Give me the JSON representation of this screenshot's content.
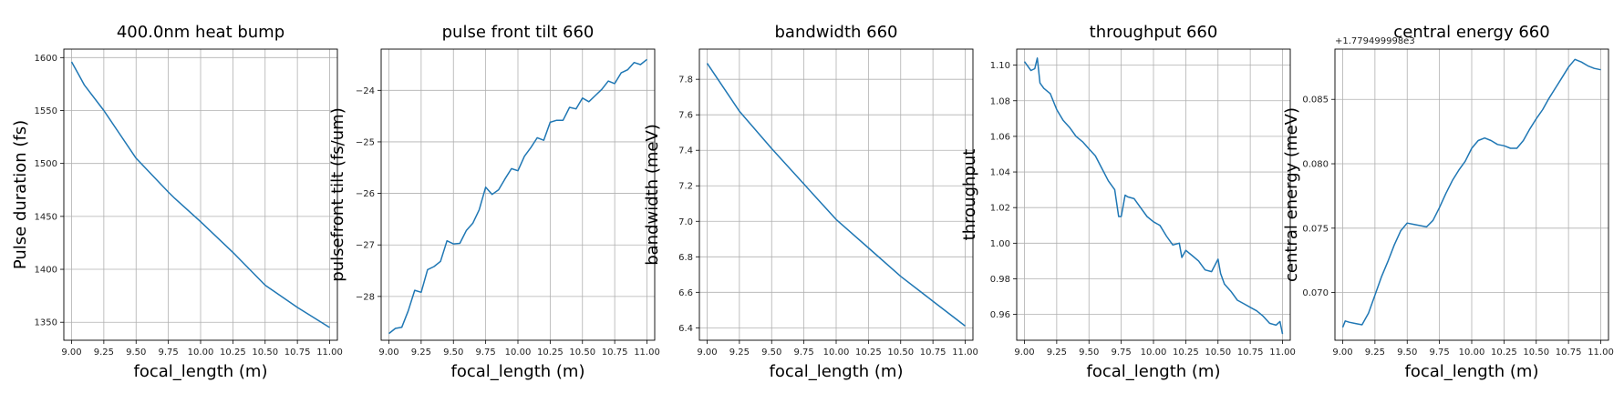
{
  "chart_data": [
    {
      "type": "line",
      "title": "400.0nm heat bump",
      "xlabel": "focal_length (m)",
      "ylabel": "Pulse duration (fs)",
      "offset_text": "",
      "xlim": [
        8.94,
        11.06
      ],
      "ylim": [
        1333,
        1608
      ],
      "xticks": [
        "9.00",
        "9.25",
        "9.50",
        "9.75",
        "10.00",
        "10.25",
        "10.50",
        "10.75",
        "11.00"
      ],
      "yticks": [
        1350,
        1400,
        1450,
        1500,
        1550,
        1600
      ],
      "ytick_labels": [
        "1350",
        "1400",
        "1450",
        "1500",
        "1550",
        "1600"
      ],
      "grid": true,
      "color": "#1f77b4",
      "series": [
        {
          "x": [
            9.0,
            9.05,
            9.1,
            9.25,
            9.5,
            9.75,
            9.8,
            10.0,
            10.25,
            10.5,
            10.75,
            11.0
          ],
          "y": [
            1596,
            1585,
            1574,
            1550,
            1505,
            1473,
            1467,
            1445,
            1416,
            1385,
            1364,
            1345
          ]
        }
      ]
    },
    {
      "type": "line",
      "title": "pulse front tilt 660",
      "xlabel": "focal_length (m)",
      "ylabel": "pulsefront tilt (fs/um)",
      "offset_text": "",
      "xlim": [
        8.94,
        11.06
      ],
      "ylim": [
        -28.85,
        -23.2
      ],
      "xticks": [
        "9.00",
        "9.25",
        "9.50",
        "9.75",
        "10.00",
        "10.25",
        "10.50",
        "10.75",
        "11.00"
      ],
      "yticks": [
        -28,
        -27,
        -26,
        -25,
        -24
      ],
      "ytick_labels": [
        "−28",
        "−27",
        "−26",
        "−25",
        "−24"
      ],
      "grid": true,
      "color": "#1f77b4",
      "series": [
        {
          "x": [
            9.0,
            9.05,
            9.1,
            9.15,
            9.2,
            9.25,
            9.3,
            9.35,
            9.4,
            9.45,
            9.5,
            9.55,
            9.6,
            9.65,
            9.7,
            9.75,
            9.8,
            9.85,
            9.9,
            9.95,
            10.0,
            10.05,
            10.1,
            10.15,
            10.2,
            10.25,
            10.3,
            10.35,
            10.4,
            10.45,
            10.5,
            10.55,
            10.6,
            10.65,
            10.7,
            10.75,
            10.8,
            10.85,
            10.9,
            10.95,
            11.0
          ],
          "y": [
            -28.72,
            -28.62,
            -28.6,
            -28.28,
            -27.88,
            -27.92,
            -27.48,
            -27.42,
            -27.32,
            -26.92,
            -26.98,
            -26.97,
            -26.72,
            -26.58,
            -26.32,
            -25.88,
            -26.02,
            -25.93,
            -25.72,
            -25.52,
            -25.56,
            -25.28,
            -25.11,
            -24.92,
            -24.97,
            -24.62,
            -24.58,
            -24.58,
            -24.33,
            -24.36,
            -24.15,
            -24.22,
            -24.1,
            -23.98,
            -23.82,
            -23.87,
            -23.66,
            -23.6,
            -23.46,
            -23.5,
            -23.4
          ]
        }
      ]
    },
    {
      "type": "line",
      "title": "bandwidth 660",
      "xlabel": "focal_length (m)",
      "ylabel": "bandwidth (meV)",
      "offset_text": "",
      "xlim": [
        8.94,
        11.06
      ],
      "ylim": [
        6.33,
        7.97
      ],
      "xticks": [
        "9.00",
        "9.25",
        "9.50",
        "9.75",
        "10.00",
        "10.25",
        "10.50",
        "10.75",
        "11.00"
      ],
      "yticks": [
        6.4,
        6.6,
        6.8,
        7.0,
        7.2,
        7.4,
        7.6,
        7.8
      ],
      "ytick_labels": [
        "6.4",
        "6.6",
        "6.8",
        "7.0",
        "7.2",
        "7.4",
        "7.6",
        "7.8"
      ],
      "grid": true,
      "color": "#1f77b4",
      "series": [
        {
          "x": [
            9.0,
            9.25,
            9.5,
            9.75,
            10.0,
            10.25,
            10.5,
            10.75,
            11.0
          ],
          "y": [
            7.89,
            7.62,
            7.41,
            7.21,
            7.01,
            6.85,
            6.69,
            6.55,
            6.41
          ]
        }
      ]
    },
    {
      "type": "line",
      "title": "throughput 660",
      "xlabel": "focal_length (m)",
      "ylabel": "throughput",
      "offset_text": "",
      "xlim": [
        8.94,
        11.06
      ],
      "ylim": [
        0.9455,
        1.109
      ],
      "xticks": [
        "9.00",
        "9.25",
        "9.50",
        "9.75",
        "10.00",
        "10.25",
        "10.50",
        "10.75",
        "11.00"
      ],
      "yticks": [
        0.96,
        0.98,
        1.0,
        1.02,
        1.04,
        1.06,
        1.08,
        1.1
      ],
      "ytick_labels": [
        "0.96",
        "0.98",
        "1.00",
        "1.02",
        "1.04",
        "1.06",
        "1.08",
        "1.10"
      ],
      "grid": true,
      "color": "#1f77b4",
      "series": [
        {
          "x": [
            9.0,
            9.05,
            9.08,
            9.1,
            9.12,
            9.15,
            9.2,
            9.25,
            9.3,
            9.35,
            9.4,
            9.45,
            9.5,
            9.55,
            9.6,
            9.65,
            9.7,
            9.73,
            9.75,
            9.78,
            9.8,
            9.85,
            9.9,
            9.95,
            10.0,
            10.05,
            10.1,
            10.15,
            10.2,
            10.22,
            10.25,
            10.3,
            10.35,
            10.4,
            10.45,
            10.5,
            10.52,
            10.55,
            10.6,
            10.65,
            10.7,
            10.75,
            10.8,
            10.85,
            10.9,
            10.95,
            10.98,
            11.0
          ],
          "y": [
            1.102,
            1.097,
            1.098,
            1.104,
            1.09,
            1.087,
            1.084,
            1.075,
            1.069,
            1.065,
            1.06,
            1.057,
            1.053,
            1.049,
            1.042,
            1.035,
            1.03,
            1.015,
            1.015,
            1.027,
            1.026,
            1.025,
            1.02,
            1.015,
            1.012,
            1.01,
            1.004,
            0.999,
            1.0,
            0.992,
            0.996,
            0.993,
            0.99,
            0.985,
            0.984,
            0.991,
            0.983,
            0.977,
            0.973,
            0.968,
            0.966,
            0.964,
            0.962,
            0.959,
            0.955,
            0.954,
            0.956,
            0.949
          ]
        }
      ]
    },
    {
      "type": "line",
      "title": "central energy 660",
      "xlabel": "focal_length (m)",
      "ylabel": "central energy (meV)",
      "offset_text": "+1.779499998e3",
      "xlim": [
        8.94,
        11.06
      ],
      "ylim": [
        0.0663,
        0.0889
      ],
      "xticks": [
        "9.00",
        "9.25",
        "9.50",
        "9.75",
        "10.00",
        "10.25",
        "10.50",
        "10.75",
        "11.00"
      ],
      "yticks": [
        0.07,
        0.075,
        0.08,
        0.085
      ],
      "ytick_labels": [
        "0.070",
        "0.075",
        "0.080",
        "0.085"
      ],
      "grid": true,
      "color": "#1f77b4",
      "series": [
        {
          "x": [
            9.0,
            9.02,
            9.05,
            9.1,
            9.15,
            9.2,
            9.25,
            9.3,
            9.35,
            9.4,
            9.45,
            9.5,
            9.55,
            9.6,
            9.65,
            9.7,
            9.75,
            9.8,
            9.85,
            9.9,
            9.95,
            10.0,
            10.05,
            10.1,
            10.15,
            10.2,
            10.25,
            10.3,
            10.35,
            10.4,
            10.45,
            10.5,
            10.55,
            10.6,
            10.65,
            10.7,
            10.75,
            10.8,
            10.85,
            10.9,
            10.95,
            11.0
          ],
          "y": [
            0.0673,
            0.0678,
            0.0677,
            0.0676,
            0.0675,
            0.0684,
            0.0698,
            0.0712,
            0.0724,
            0.0737,
            0.0748,
            0.0754,
            0.0753,
            0.0752,
            0.0751,
            0.0756,
            0.0766,
            0.0777,
            0.0787,
            0.0795,
            0.0802,
            0.0812,
            0.0818,
            0.082,
            0.0818,
            0.0815,
            0.0814,
            0.0812,
            0.0812,
            0.0818,
            0.0827,
            0.0835,
            0.0842,
            0.0851,
            0.0859,
            0.0867,
            0.0875,
            0.0881,
            0.0879,
            0.0876,
            0.0874,
            0.0873
          ]
        }
      ]
    }
  ]
}
